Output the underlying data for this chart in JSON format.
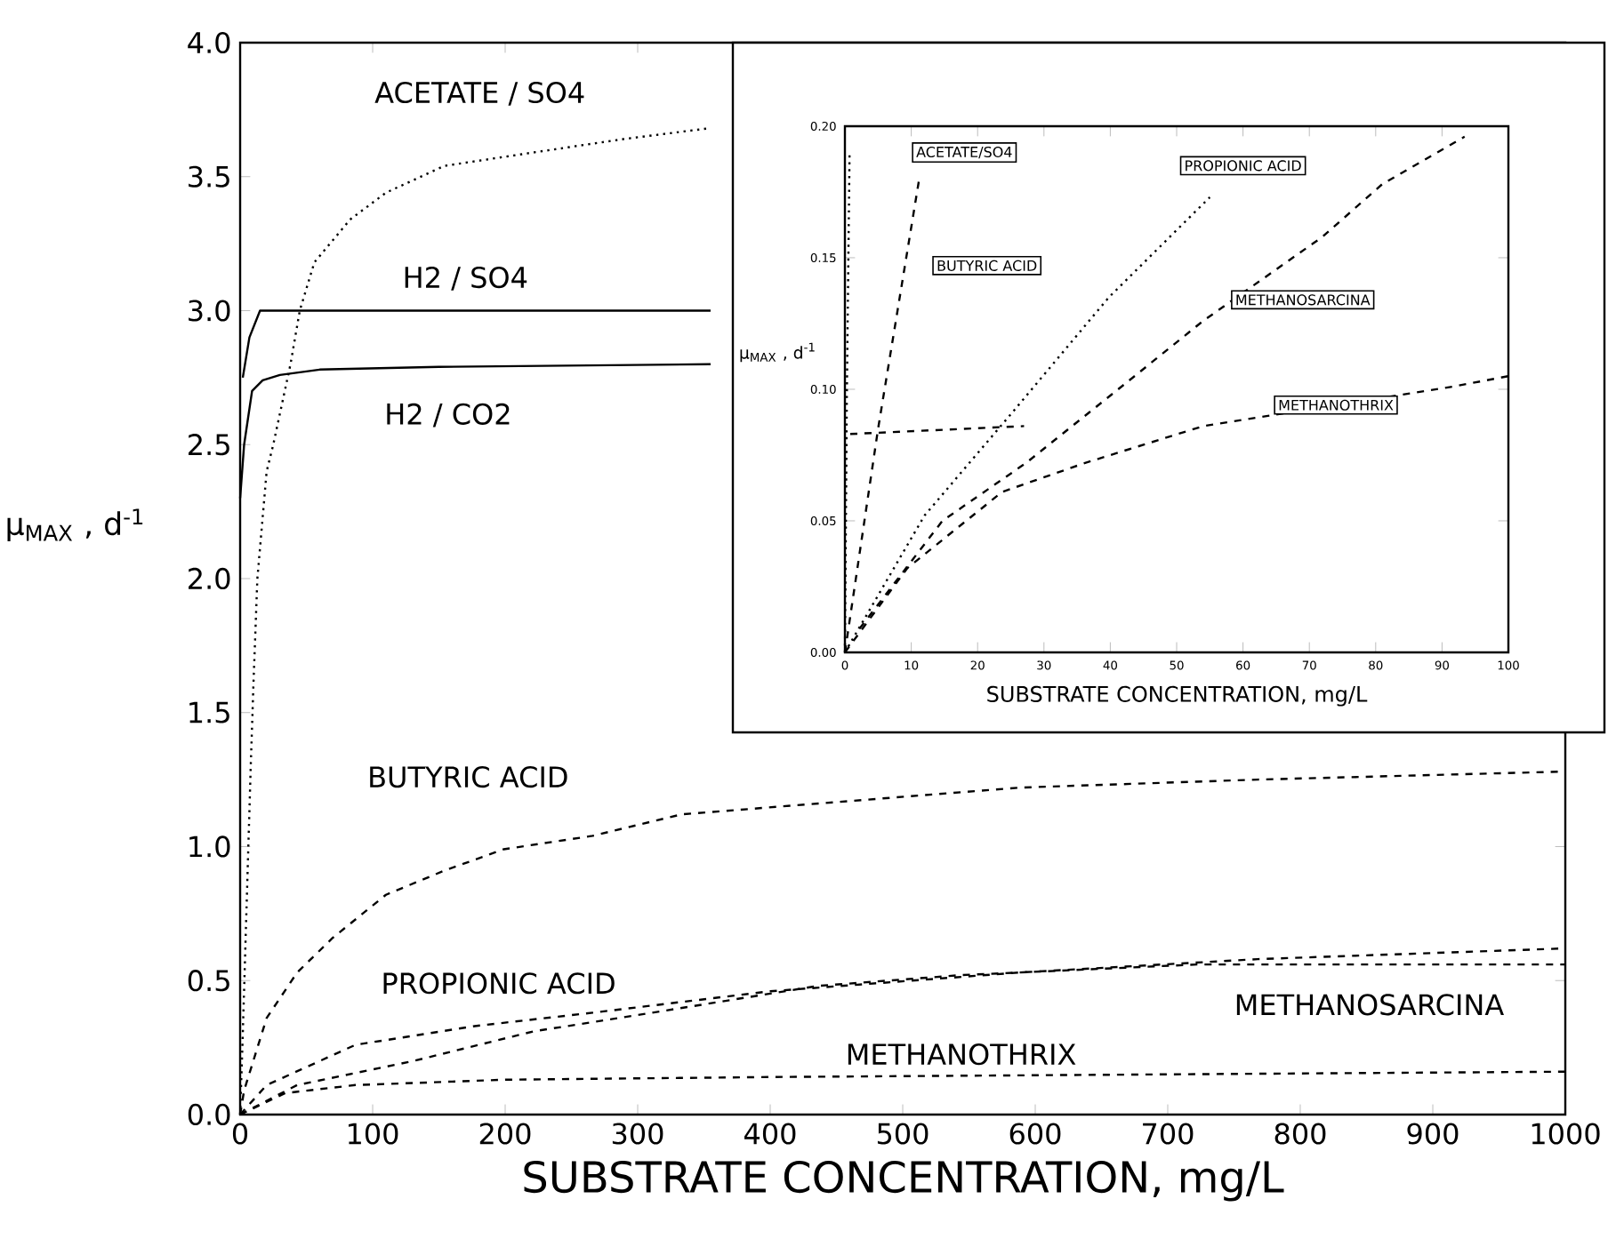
{
  "chart_data": [
    {
      "type": "line",
      "xlabel": "SUBSTRATE CONCENTRATION, mg/L",
      "ylabel": "μ$_{MAX}$ , d$^{-1}$",
      "xlim": [
        0,
        1000
      ],
      "ylim": [
        0,
        4
      ],
      "xticks": [
        0,
        100,
        200,
        300,
        400,
        500,
        600,
        700,
        800,
        900,
        1000
      ],
      "yticks": [
        {
          "value": 0,
          "label": "0.0"
        },
        {
          "value": 0.5,
          "label": "0.5"
        },
        {
          "value": 1,
          "label": "1.0"
        },
        {
          "value": 1.5,
          "label": "1.5"
        },
        {
          "value": 2,
          "label": "2.0"
        },
        {
          "value": 2.5,
          "label": "2.5"
        },
        {
          "value": 3,
          "label": "3.0"
        },
        {
          "value": 3.5,
          "label": "3.5"
        },
        {
          "value": 4,
          "label": "4.0"
        }
      ],
      "series": [
        {
          "name": "ACETATE / SO4",
          "color": "#000000",
          "line_style": "dotted",
          "x": [
            0,
            2,
            5,
            8,
            10,
            13,
            20,
            25,
            38,
            45,
            56,
            83,
            110,
            154,
            221,
            289,
            353
          ],
          "values": [
            0,
            0.3,
            0.8,
            1.3,
            1.6,
            2.0,
            2.4,
            2.5,
            2.8,
            3.0,
            3.18,
            3.34,
            3.44,
            3.54,
            3.59,
            3.64,
            3.68
          ]
        },
        {
          "name": "H2 / SO4",
          "color": "#000000",
          "line_style": "solid",
          "x": [
            2,
            7,
            15,
            100,
            200,
            355
          ],
          "values": [
            2.75,
            2.9,
            3.0,
            3.0,
            3.0,
            3.0
          ]
        },
        {
          "name": "H2 / CO2",
          "color": "#000000",
          "line_style": "solid",
          "x": [
            0,
            3,
            9,
            17,
            30,
            60,
            150,
            355
          ],
          "values": [
            2.3,
            2.5,
            2.7,
            2.74,
            2.76,
            2.78,
            2.79,
            2.8
          ]
        },
        {
          "name": "BUTYRIC ACID",
          "color": "#000000",
          "line_style": "dashed",
          "x": [
            0,
            3,
            20,
            43,
            70,
            110,
            154,
            199,
            266,
            333,
            409,
            588,
            768,
            1000
          ],
          "values": [
            0,
            0.09,
            0.36,
            0.53,
            0.66,
            0.82,
            0.91,
            0.99,
            1.04,
            1.12,
            1.15,
            1.22,
            1.25,
            1.28
          ]
        },
        {
          "name": "PROPIONIC ACID",
          "color": "#000000",
          "line_style": "dashed",
          "x": [
            0,
            20,
            87,
            177,
            266,
            400,
            588,
            768,
            1000
          ],
          "values": [
            0,
            0.11,
            0.26,
            0.33,
            0.38,
            0.46,
            0.53,
            0.58,
            0.62
          ]
        },
        {
          "name": "METHANOSARCINA",
          "color": "#000000",
          "line_style": "dashed",
          "x": [
            0,
            43,
            131,
            221,
            311,
            436,
            543,
            722,
            1000
          ],
          "values": [
            0,
            0.11,
            0.2,
            0.31,
            0.38,
            0.48,
            0.52,
            0.56,
            0.56
          ]
        },
        {
          "name": "METHANOTHRIX",
          "color": "#000000",
          "line_style": "dashed",
          "x": [
            0,
            34,
            87,
            200,
            400,
            700,
            1000
          ],
          "values": [
            0,
            0.08,
            0.11,
            0.13,
            0.14,
            0.15,
            0.16
          ]
        }
      ]
    },
    {
      "type": "line",
      "xlabel": "SUBSTRATE CONCENTRATION, mg/L",
      "ylabel": "μ$_{MAX}$ , d$^{-1}$",
      "xlim": [
        0,
        100
      ],
      "ylim": [
        0,
        0.2
      ],
      "xticks": [
        0,
        10,
        20,
        30,
        40,
        50,
        60,
        70,
        80,
        90,
        100
      ],
      "yticks": [
        {
          "value": 0,
          "label": "0.00"
        },
        {
          "value": 0.05,
          "label": "0.05"
        },
        {
          "value": 0.1,
          "label": "0.10"
        },
        {
          "value": 0.15,
          "label": "0.15"
        },
        {
          "value": 0.2,
          "label": "0.20"
        }
      ],
      "series": [
        {
          "name": "ACETATE/SO4",
          "color": "#000000",
          "line_style": "dotted",
          "x": [
            0,
            0.3,
            0.7
          ],
          "values": [
            0,
            0.1,
            0.19
          ]
        },
        {
          "name": "PROPIONIC ACID",
          "color": "#000000",
          "line_style": "dotted",
          "x": [
            0,
            12,
            25.5,
            39.8,
            55
          ],
          "values": [
            0,
            0.052,
            0.092,
            0.135,
            0.173
          ]
        },
        {
          "name": "BUTYRIC ACID",
          "color": "#000000",
          "line_style": "dashed",
          "x": [
            0,
            5,
            11.2
          ],
          "values": [
            0,
            0.085,
            0.18
          ]
        },
        {
          "name": "METHANOSARCINA",
          "color": "#000000",
          "line_style": "dashed",
          "x": [
            2.2,
            14.7,
            27.3,
            40.7,
            54,
            72,
            81,
            93.4
          ],
          "values": [
            0.009,
            0.05,
            0.072,
            0.099,
            0.126,
            0.158,
            0.178,
            0.196
          ]
        },
        {
          "name": "METHANOTHRIX",
          "color": "#000000",
          "line_style": "dashed",
          "x": [
            0,
            9.4,
            23.7,
            36.2,
            54,
            91.6,
            100
          ],
          "values": [
            0,
            0.032,
            0.061,
            0.072,
            0.086,
            0.101,
            0.105
          ]
        },
        {
          "color": "#000000",
          "line_style": "dashed",
          "x": [
            0.8,
            27
          ],
          "values": [
            0.083,
            0.086
          ]
        }
      ]
    }
  ]
}
